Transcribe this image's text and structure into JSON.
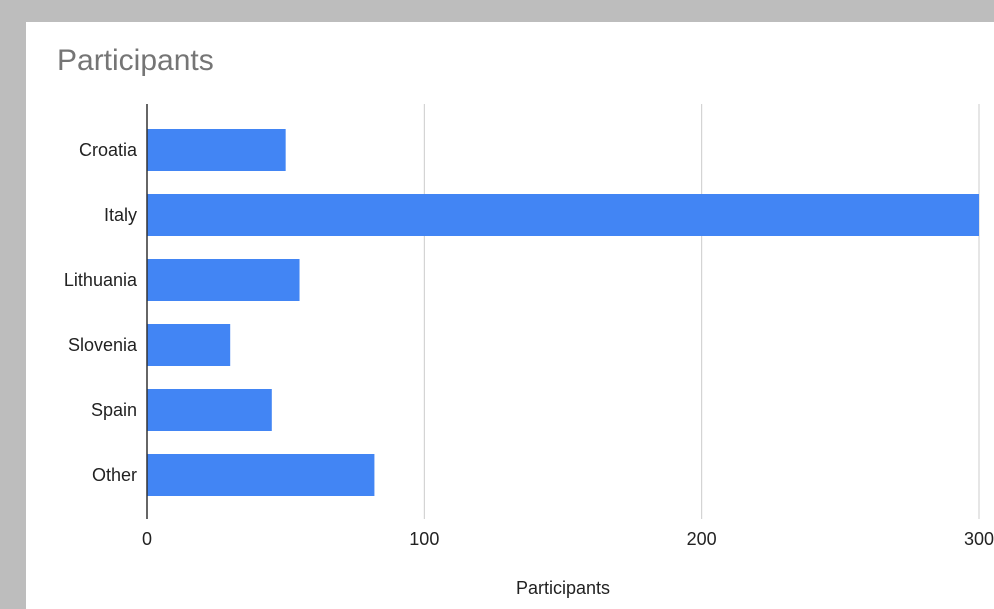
{
  "chart_data": {
    "type": "bar",
    "orientation": "horizontal",
    "title": "Participants",
    "xlabel": "Participants",
    "ylabel": "",
    "categories": [
      "Croatia",
      "Italy",
      "Lithuania",
      "Slovenia",
      "Spain",
      "Other"
    ],
    "values": [
      50,
      300,
      55,
      30,
      45,
      82
    ],
    "xlim": [
      0,
      300
    ],
    "xticks": [
      "0",
      "100",
      "200",
      "300"
    ],
    "grid": "vertical",
    "legend": "none",
    "bar_color": "#4285f4",
    "gridline_color": "#cccccc",
    "axis_color": "#333333"
  }
}
